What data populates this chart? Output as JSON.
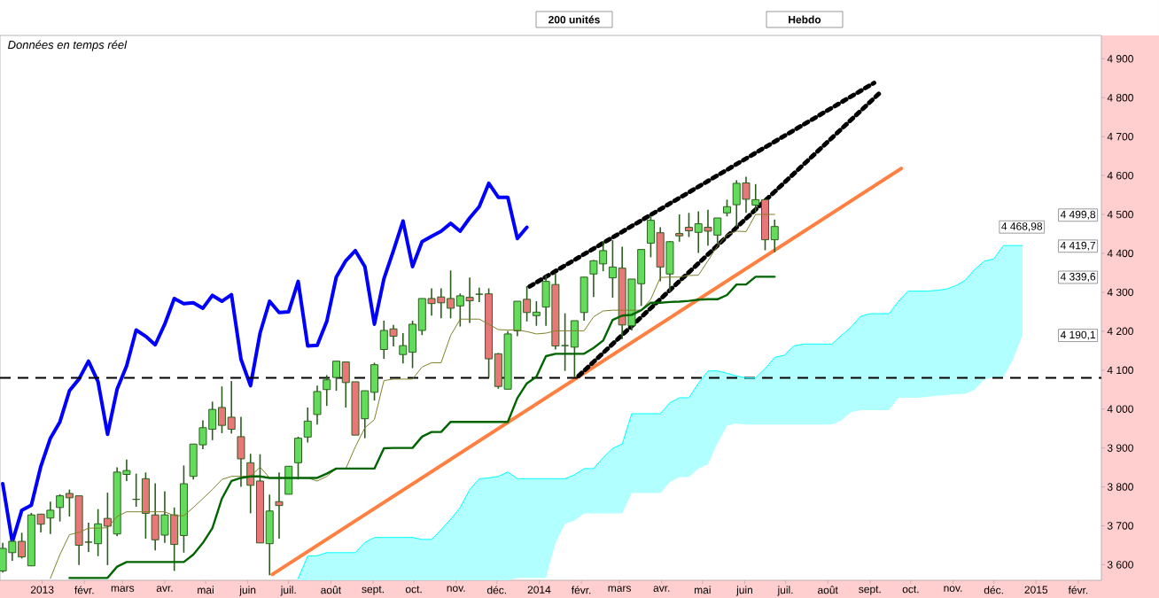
{
  "chart_data": {
    "type": "candlestick",
    "x": [
      "2012-12-03",
      "2012-12-10",
      "2012-12-17",
      "2012-12-24",
      "2012-12-31",
      "2013-01-07",
      "2013-01-14",
      "2013-01-21",
      "2013-01-28",
      "2013-02-04",
      "2013-02-11",
      "2013-02-18",
      "2013-02-25",
      "2013-03-04",
      "2013-03-11",
      "2013-03-18",
      "2013-03-25",
      "2013-04-01",
      "2013-04-08",
      "2013-04-15",
      "2013-04-22",
      "2013-04-29",
      "2013-05-06",
      "2013-05-13",
      "2013-05-20",
      "2013-05-27",
      "2013-06-03",
      "2013-06-10",
      "2013-06-17",
      "2013-06-24",
      "2013-07-01",
      "2013-07-08",
      "2013-07-15",
      "2013-07-22",
      "2013-07-29",
      "2013-08-05",
      "2013-08-12",
      "2013-08-19",
      "2013-08-26",
      "2013-09-02",
      "2013-09-09",
      "2013-09-16",
      "2013-09-23",
      "2013-09-30",
      "2013-10-07",
      "2013-10-14",
      "2013-10-21",
      "2013-10-28",
      "2013-11-04",
      "2013-11-11",
      "2013-11-18",
      "2013-11-25",
      "2013-12-02",
      "2013-12-09",
      "2013-12-16",
      "2013-12-23",
      "2013-12-30",
      "2014-01-06",
      "2014-01-13",
      "2014-01-20",
      "2014-01-27",
      "2014-02-03",
      "2014-02-10",
      "2014-02-17",
      "2014-02-24",
      "2014-03-03",
      "2014-03-10",
      "2014-03-17",
      "2014-03-24",
      "2014-03-31",
      "2014-04-07",
      "2014-04-14",
      "2014-04-21",
      "2014-04-28",
      "2014-05-05",
      "2014-05-12",
      "2014-05-19",
      "2014-05-26",
      "2014-06-02",
      "2014-06-09",
      "2014-06-16",
      "2014-06-23"
    ],
    "ohlc": [
      [
        3584,
        3656,
        3580,
        3642
      ],
      [
        3631,
        3664,
        3610,
        3660
      ],
      [
        3660,
        3682,
        3616,
        3620
      ],
      [
        3597,
        3733,
        3597,
        3728
      ],
      [
        3730,
        3730,
        3683,
        3704
      ],
      [
        3720,
        3762,
        3679,
        3740
      ],
      [
        3747,
        3781,
        3711,
        3777
      ],
      [
        3783,
        3793,
        3724,
        3772
      ],
      [
        3777,
        3777,
        3599,
        3650
      ],
      [
        3658,
        3708,
        3633,
        3658
      ],
      [
        3654,
        3743,
        3622,
        3705
      ],
      [
        3719,
        3785,
        3599,
        3699
      ],
      [
        3679,
        3850,
        3673,
        3838
      ],
      [
        3832,
        3870,
        3815,
        3842
      ],
      [
        3768,
        3834,
        3749,
        3768
      ],
      [
        3821,
        3837,
        3667,
        3732
      ],
      [
        3728,
        3809,
        3637,
        3664
      ],
      [
        3676,
        3789,
        3656,
        3728
      ],
      [
        3728,
        3747,
        3584,
        3652
      ],
      [
        3675,
        3855,
        3631,
        3808
      ],
      [
        3827,
        3910,
        3819,
        3910
      ],
      [
        3908,
        3971,
        3897,
        3952
      ],
      [
        3948,
        4019,
        3920,
        3999
      ],
      [
        4004,
        4058,
        3938,
        3958
      ],
      [
        3979,
        4072,
        3937,
        3948
      ],
      [
        3929,
        3980,
        3800,
        3872
      ],
      [
        3862,
        3885,
        3732,
        3804
      ],
      [
        3815,
        3884,
        3656,
        3656
      ],
      [
        3654,
        3780,
        3573,
        3738
      ],
      [
        3762,
        3837,
        3667,
        3752
      ],
      [
        3781,
        3853,
        3781,
        3853
      ],
      [
        3862,
        3929,
        3819,
        3925
      ],
      [
        3928,
        4004,
        3914,
        3969
      ],
      [
        3986,
        4060,
        3960,
        4045
      ],
      [
        4050,
        4087,
        4008,
        4075
      ],
      [
        4081,
        4123,
        4047,
        4123
      ],
      [
        4121,
        4121,
        4004,
        4068
      ],
      [
        4070,
        4070,
        3933,
        3933
      ],
      [
        3975,
        4047,
        3925,
        4047
      ],
      [
        4043,
        4119,
        4022,
        4114
      ],
      [
        4153,
        4227,
        4129,
        4202
      ],
      [
        4206,
        4216,
        4161,
        4187
      ],
      [
        4140,
        4195,
        4117,
        4163
      ],
      [
        4146,
        4227,
        4105,
        4218
      ],
      [
        4202,
        4284,
        4190,
        4284
      ],
      [
        4284,
        4310,
        4240,
        4271
      ],
      [
        4288,
        4310,
        4233,
        4273
      ],
      [
        4284,
        4356,
        4233,
        4259
      ],
      [
        4265,
        4297,
        4212,
        4291
      ],
      [
        4287,
        4338,
        4221,
        4278
      ],
      [
        4295,
        4312,
        4275,
        4295
      ],
      [
        4296,
        4310,
        4081,
        4129
      ],
      [
        4142,
        4144,
        4052,
        4058
      ],
      [
        4051,
        4200,
        4051,
        4193
      ],
      [
        4201,
        4277,
        4187,
        4277
      ],
      [
        4282,
        4316,
        4225,
        4248
      ],
      [
        4240,
        4277,
        4214,
        4249
      ],
      [
        4262,
        4343,
        4214,
        4328
      ],
      [
        4320,
        4350,
        4153,
        4162
      ],
      [
        4163,
        4246,
        4098,
        4163
      ],
      [
        4159,
        4227,
        4081,
        4227
      ],
      [
        4248,
        4339,
        4227,
        4339
      ],
      [
        4347,
        4383,
        4288,
        4381
      ],
      [
        4373,
        4430,
        4354,
        4407
      ],
      [
        4337,
        4434,
        4286,
        4365
      ],
      [
        4362,
        4417,
        4180,
        4216
      ],
      [
        4214,
        4334,
        4202,
        4334
      ],
      [
        4322,
        4410,
        4265,
        4410
      ],
      [
        4426,
        4495,
        4390,
        4485
      ],
      [
        4453,
        4467,
        4328,
        4365
      ],
      [
        4347,
        4432,
        4301,
        4430
      ],
      [
        4451,
        4500,
        4430,
        4445
      ],
      [
        4467,
        4504,
        4442,
        4458
      ],
      [
        4454,
        4508,
        4401,
        4476
      ],
      [
        4467,
        4512,
        4420,
        4457
      ],
      [
        4447,
        4491,
        4423,
        4491
      ],
      [
        4504,
        4538,
        4495,
        4520
      ],
      [
        4525,
        4588,
        4468,
        4580
      ],
      [
        4581,
        4597,
        4504,
        4539
      ],
      [
        4524,
        4578,
        4507,
        4538
      ],
      [
        4538,
        4538,
        4408,
        4435
      ],
      [
        4435,
        4487,
        4403,
        4469
      ]
    ],
    "series": [
      {
        "type": "line",
        "color": "#0000ff",
        "values": [
          3808,
          3658,
          3740,
          3753,
          3853,
          3925,
          3967,
          4047,
          4077,
          4123,
          4070,
          3935,
          4051,
          4111,
          4203,
          4187,
          4165,
          4218,
          4284,
          4271,
          4273,
          4259,
          4292,
          4277,
          4294,
          4128,
          4060,
          4195,
          4277,
          4248,
          4250,
          4328,
          4162,
          4164,
          4225,
          4339,
          4381,
          4407,
          4366,
          4218,
          4335,
          4407,
          4483,
          4366,
          4430,
          4444,
          4457,
          4477,
          4457,
          4491,
          4520,
          4580,
          4544,
          4544,
          4438,
          4467,
          null,
          null,
          null,
          null,
          null,
          null,
          null,
          null,
          null,
          null,
          null,
          null,
          null,
          null,
          null,
          null,
          null,
          null,
          null,
          null,
          null,
          null,
          null,
          null,
          null,
          null
        ]
      },
      {
        "type": "line",
        "color": "#7f7f2a",
        "values": [
          null,
          null,
          null,
          null,
          null,
          3565,
          3626,
          3677,
          3683,
          3694,
          3694,
          3695,
          3724,
          3736,
          3736,
          3736,
          3736,
          3736,
          3726,
          3726,
          3747,
          3770,
          3793,
          3819,
          3827,
          3827,
          3827,
          3851,
          3823,
          3823,
          3823,
          3823,
          3823,
          3815,
          3827,
          3847,
          3847,
          3903,
          3952,
          3973,
          4073,
          4077,
          4077,
          4077,
          4108,
          4119,
          4119,
          4189,
          4231,
          4231,
          4231,
          4218,
          4204,
          4203,
          4203,
          4199,
          4193,
          4195,
          4201,
          4201,
          4201,
          4201,
          4237,
          4252,
          4254,
          4254,
          4254,
          4254,
          4282,
          4338,
          4339,
          4339,
          4343,
          4344,
          4381,
          4419,
          4448,
          4457,
          4456,
          4500,
          4500,
          4500
        ]
      },
      {
        "type": "line",
        "color": "#006400",
        "values": [
          null,
          null,
          null,
          null,
          null,
          null,
          null,
          3566,
          3566,
          3566,
          3566,
          3566,
          3595,
          3607,
          3607,
          3607,
          3607,
          3607,
          3607,
          3607,
          3626,
          3656,
          3694,
          3770,
          3815,
          3823,
          3827,
          3827,
          3823,
          3823,
          3823,
          3823,
          3823,
          3823,
          3834,
          3847,
          3847,
          3847,
          3847,
          3847,
          3899,
          3900,
          3900,
          3900,
          3929,
          3941,
          3941,
          3967,
          3967,
          3967,
          3967,
          3967,
          3967,
          3967,
          4028,
          4066,
          4083,
          4136,
          4142,
          4142,
          4142,
          4142,
          4157,
          4176,
          4229,
          4240,
          4242,
          4254,
          4273,
          4273,
          4275,
          4276,
          4278,
          4281,
          4282,
          4282,
          4293,
          4320,
          4320,
          4340,
          4340,
          4340
        ]
      },
      {
        "type": "line",
        "color": "#00ffff",
        "x": [
          "2013-07-08",
          "2013-07-15",
          "2013-07-22",
          "2013-07-29",
          "2013-08-05",
          "2013-08-12",
          "2013-08-19",
          "2013-08-26",
          "2013-09-02",
          "2013-09-09",
          "2013-09-16",
          "2013-09-23",
          "2013-09-30",
          "2013-10-07",
          "2013-10-14",
          "2013-10-21",
          "2013-10-28",
          "2013-11-04",
          "2013-11-11",
          "2013-11-18",
          "2013-11-25",
          "2013-12-02",
          "2013-12-09",
          "2013-12-16",
          "2013-12-23",
          "2013-12-30",
          "2014-01-06",
          "2014-01-13",
          "2014-01-20",
          "2014-01-27",
          "2014-02-03",
          "2014-02-10",
          "2014-02-17",
          "2014-02-24",
          "2014-03-03",
          "2014-03-10",
          "2014-03-17",
          "2014-03-24",
          "2014-03-31",
          "2014-04-07",
          "2014-04-14",
          "2014-04-21",
          "2014-04-28",
          "2014-05-05",
          "2014-05-12",
          "2014-05-19",
          "2014-05-26",
          "2014-06-02",
          "2014-06-09",
          "2014-06-16",
          "2014-06-23",
          "2014-06-30",
          "2014-07-07",
          "2014-07-14",
          "2014-07-21",
          "2014-07-28",
          "2014-08-04",
          "2014-08-11",
          "2014-08-18",
          "2014-08-25",
          "2014-09-01",
          "2014-09-08",
          "2014-09-15",
          "2014-09-22",
          "2014-09-29",
          "2014-10-06",
          "2014-10-13",
          "2014-10-20",
          "2014-10-27",
          "2014-11-03",
          "2014-11-10",
          "2014-11-17",
          "2014-11-24",
          "2014-12-01",
          "2014-12-08",
          "2014-12-15",
          "2014-12-22"
        ],
        "values": [
          3565,
          3622,
          3623,
          3631,
          3631,
          3631,
          3631,
          3657,
          3670,
          3670,
          3670,
          3670,
          3670,
          3665,
          3665,
          3690,
          3717,
          3747,
          3793,
          3821,
          3823,
          3827,
          3838,
          3821,
          3821,
          3821,
          3821,
          3821,
          3821,
          3831,
          3847,
          3847,
          3875,
          3899,
          3910,
          3988,
          3988,
          3988,
          3988,
          4016,
          4029,
          4029,
          4066,
          4098,
          4098,
          4092,
          4085,
          4080,
          4080,
          4104,
          4133,
          4138,
          4162,
          4167,
          4167,
          4167,
          4167,
          4189,
          4210,
          4238,
          4245,
          4245,
          4245,
          4277,
          4303,
          4303,
          4303,
          4305,
          4308,
          4317,
          4331,
          4359,
          4380,
          4386,
          4420,
          4420,
          4420
        ],
        "upper": [
          3565,
          3622,
          3623,
          3631,
          3631,
          3631,
          3631,
          3657,
          3670,
          3670,
          3670,
          3670,
          3670,
          3665,
          3665,
          3690,
          3717,
          3747,
          3793,
          3821,
          3823,
          3827,
          3838,
          3821,
          3821,
          3821,
          3821,
          3821,
          3821,
          3831,
          3847,
          3847,
          3875,
          3899,
          3910,
          3988,
          3988,
          3988,
          3988,
          4016,
          4029,
          4029,
          4066,
          4098,
          4098,
          4092,
          4085,
          4080,
          4080,
          4104,
          4133,
          4138,
          4162,
          4167,
          4167,
          4167,
          4167,
          4189,
          4210,
          4238,
          4245,
          4245,
          4245,
          4277,
          4303,
          4303,
          4303,
          4305,
          4308,
          4317,
          4331,
          4359,
          4380,
          4386,
          4420,
          4420,
          4420
        ],
        "lower": [
          3560,
          3560,
          3560,
          3560,
          3560,
          3560,
          3560,
          3560,
          3560,
          3560,
          3560,
          3560,
          3560,
          3560,
          3560,
          3560,
          3560,
          3560,
          3560,
          3560,
          3560,
          3560,
          3560,
          3566,
          3566,
          3566,
          3566,
          3656,
          3705,
          3713,
          3732,
          3732,
          3732,
          3732,
          3732,
          3784,
          3784,
          3784,
          3784,
          3812,
          3825,
          3825,
          3847,
          3858,
          3912,
          3957,
          3963,
          3960,
          3960,
          3960,
          3960,
          3960,
          3960,
          3960,
          3960,
          3960,
          3960,
          3971,
          3992,
          3997,
          3997,
          3997,
          3997,
          4029,
          4029,
          4029,
          4031,
          4034,
          4036,
          4038,
          4039,
          4050,
          4076,
          4082,
          4082,
          4127,
          4190
        ]
      },
      {
        "type": "line",
        "color": "#ff8040",
        "x": [
          "2013-06-19",
          "2014-09-24"
        ],
        "values": [
          3575,
          4618
        ]
      },
      {
        "type": "line",
        "color": "#000000",
        "line_style": "dotted",
        "x": [
          "2013-12-25",
          "2014-09-04"
        ],
        "values": [
          4315,
          4838
        ]
      },
      {
        "type": "line",
        "color": "#000000",
        "line_style": "dotted",
        "x": [
          "2014-01-30",
          "2014-09-09"
        ],
        "values": [
          4085,
          4815
        ]
      }
    ],
    "ref_lines": [
      {
        "axis": "y",
        "value": 4080,
        "color": "#000000",
        "line_style": "dashed"
      }
    ],
    "xlim": [
      "2012-12-01",
      "2015-02-18"
    ],
    "xticks": [
      {
        "value": "2013-01-01",
        "label": "2013"
      },
      {
        "value": "2013-02-01",
        "label": "févr."
      },
      {
        "value": "2013-03-01",
        "label": "mars"
      },
      {
        "value": "2013-04-01",
        "label": "avr."
      },
      {
        "value": "2013-05-01",
        "label": "mai"
      },
      {
        "value": "2013-06-01",
        "label": "juin"
      },
      {
        "value": "2013-07-01",
        "label": "juil."
      },
      {
        "value": "2013-08-01",
        "label": "août"
      },
      {
        "value": "2013-09-01",
        "label": "sept."
      },
      {
        "value": "2013-10-01",
        "label": "oct."
      },
      {
        "value": "2013-11-01",
        "label": "nov."
      },
      {
        "value": "2013-12-01",
        "label": "déc."
      },
      {
        "value": "2014-01-01",
        "label": "2014"
      },
      {
        "value": "2014-02-01",
        "label": "févr."
      },
      {
        "value": "2014-03-01",
        "label": "mars"
      },
      {
        "value": "2014-04-01",
        "label": "avr."
      },
      {
        "value": "2014-05-01",
        "label": "mai"
      },
      {
        "value": "2014-06-01",
        "label": "juin"
      },
      {
        "value": "2014-07-01",
        "label": "juil."
      },
      {
        "value": "2014-08-01",
        "label": "août"
      },
      {
        "value": "2014-09-01",
        "label": "sept."
      },
      {
        "value": "2014-10-01",
        "label": "oct."
      },
      {
        "value": "2014-11-01",
        "label": "nov."
      },
      {
        "value": "2014-12-01",
        "label": "déc."
      },
      {
        "value": "2015-01-01",
        "label": "2015"
      },
      {
        "value": "2015-02-01",
        "label": "févr."
      }
    ],
    "ylim": [
      3560,
      4960
    ],
    "yticks": [
      {
        "value": 3600,
        "label": "3 600"
      },
      {
        "value": 3700,
        "label": "3 700"
      },
      {
        "value": 3800,
        "label": "3 800"
      },
      {
        "value": 3900,
        "label": "3 900"
      },
      {
        "value": 4000,
        "label": "4 000"
      },
      {
        "value": 4100,
        "label": "4 100"
      },
      {
        "value": 4200,
        "label": "4 200"
      },
      {
        "value": 4300,
        "label": "4 300"
      },
      {
        "value": 4400,
        "label": "4 400"
      },
      {
        "value": 4500,
        "label": "4 500"
      },
      {
        "value": 4600,
        "label": "4 600"
      },
      {
        "value": 4700,
        "label": "4 700"
      },
      {
        "value": 4800,
        "label": "4 800"
      },
      {
        "value": 4900,
        "label": "4 900"
      }
    ],
    "annotations": [
      "Données en temps réel",
      "200 unités",
      "Hebdo",
      "4 499,8",
      "4 468,98",
      "4 419,7",
      "4 339,6",
      "4 190,1"
    ]
  }
}
